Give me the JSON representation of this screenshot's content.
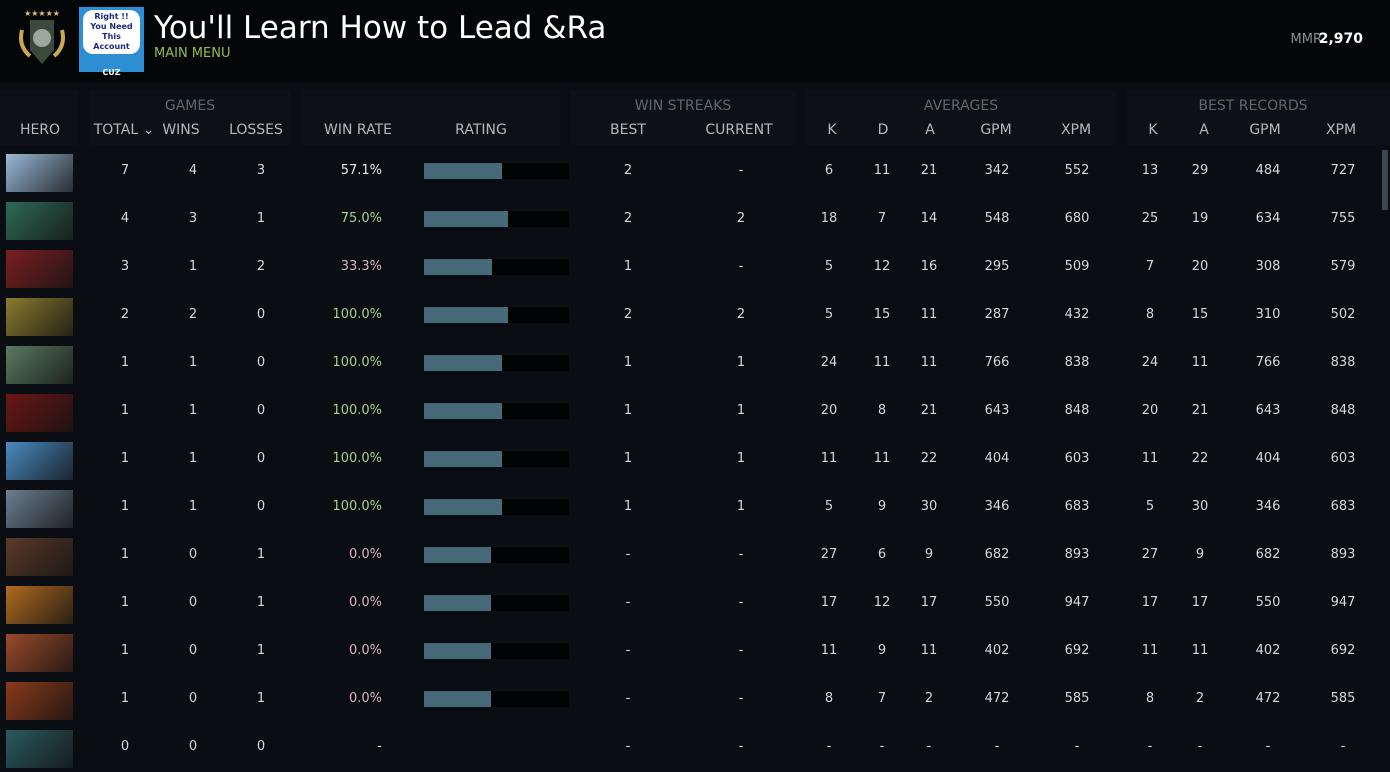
{
  "header": {
    "title": "You'll Learn How to Lead &Ra",
    "menu": "MAIN MENU",
    "mmr_label": "MMR",
    "mmr_value": "2,970",
    "avatar_text": [
      "Right !!",
      "You Need This",
      "Account",
      "CUZ"
    ]
  },
  "columns": {
    "hero": "HERO",
    "games": "GAMES",
    "total": "TOTAL ⌄",
    "wins": "WINS",
    "losses": "LOSSES",
    "win_rate": "WIN RATE",
    "rating": "RATING",
    "win_streaks": "WIN STREAKS",
    "best": "BEST",
    "current": "CURRENT",
    "averages": "AVERAGES",
    "k": "K",
    "d": "D",
    "a": "A",
    "gpm": "GPM",
    "xpm": "XPM",
    "best_records": "BEST RECORDS",
    "bk": "K",
    "ba": "A",
    "bgpm": "GPM",
    "bxpm": "XPM"
  },
  "colors": {
    "win_good": "#a9d08e",
    "win_bad": "#d9b7bd",
    "win_neutral": "#e6e9ec",
    "bar_fill": "#47697a"
  },
  "rows": [
    {
      "hero": "#9ab8d8",
      "total": "7",
      "wins": "4",
      "losses": "3",
      "win_rate": "57.1%",
      "tone": "win_neutral",
      "rating": 0.54,
      "best": "2",
      "current": "-",
      "k": "6",
      "d": "11",
      "a": "21",
      "gpm": "342",
      "xpm": "552",
      "bk": "13",
      "ba": "29",
      "bgpm": "484",
      "bxpm": "727"
    },
    {
      "hero": "#2e6a55",
      "total": "4",
      "wins": "3",
      "losses": "1",
      "win_rate": "75.0%",
      "tone": "win_good",
      "rating": 0.58,
      "best": "2",
      "current": "2",
      "k": "18",
      "d": "7",
      "a": "14",
      "gpm": "548",
      "xpm": "680",
      "bk": "25",
      "ba": "19",
      "bgpm": "634",
      "bxpm": "755"
    },
    {
      "hero": "#7a1f22",
      "total": "3",
      "wins": "1",
      "losses": "2",
      "win_rate": "33.3%",
      "tone": "win_bad",
      "rating": 0.47,
      "best": "1",
      "current": "-",
      "k": "5",
      "d": "12",
      "a": "16",
      "gpm": "295",
      "xpm": "509",
      "bk": "7",
      "ba": "20",
      "bgpm": "308",
      "bxpm": "579"
    },
    {
      "hero": "#8a7a30",
      "total": "2",
      "wins": "2",
      "losses": "0",
      "win_rate": "100.0%",
      "tone": "win_good",
      "rating": 0.58,
      "best": "2",
      "current": "2",
      "k": "5",
      "d": "15",
      "a": "11",
      "gpm": "287",
      "xpm": "432",
      "bk": "8",
      "ba": "15",
      "bgpm": "310",
      "bxpm": "502"
    },
    {
      "hero": "#5a7a60",
      "total": "1",
      "wins": "1",
      "losses": "0",
      "win_rate": "100.0%",
      "tone": "win_good",
      "rating": 0.54,
      "best": "1",
      "current": "1",
      "k": "24",
      "d": "11",
      "a": "11",
      "gpm": "766",
      "xpm": "838",
      "bk": "24",
      "ba": "11",
      "bgpm": "766",
      "bxpm": "838"
    },
    {
      "hero": "#6a1616",
      "total": "1",
      "wins": "1",
      "losses": "0",
      "win_rate": "100.0%",
      "tone": "win_good",
      "rating": 0.54,
      "best": "1",
      "current": "1",
      "k": "20",
      "d": "8",
      "a": "21",
      "gpm": "643",
      "xpm": "848",
      "bk": "20",
      "ba": "21",
      "bgpm": "643",
      "bxpm": "848"
    },
    {
      "hero": "#4a8ac0",
      "total": "1",
      "wins": "1",
      "losses": "0",
      "win_rate": "100.0%",
      "tone": "win_good",
      "rating": 0.54,
      "best": "1",
      "current": "1",
      "k": "11",
      "d": "11",
      "a": "22",
      "gpm": "404",
      "xpm": "603",
      "bk": "11",
      "ba": "22",
      "bgpm": "404",
      "bxpm": "603"
    },
    {
      "hero": "#6a7f90",
      "total": "1",
      "wins": "1",
      "losses": "0",
      "win_rate": "100.0%",
      "tone": "win_good",
      "rating": 0.54,
      "best": "1",
      "current": "1",
      "k": "5",
      "d": "9",
      "a": "30",
      "gpm": "346",
      "xpm": "683",
      "bk": "5",
      "ba": "30",
      "bgpm": "346",
      "bxpm": "683"
    },
    {
      "hero": "#5a3a2a",
      "total": "1",
      "wins": "0",
      "losses": "1",
      "win_rate": "0.0%",
      "tone": "win_bad",
      "rating": 0.46,
      "best": "-",
      "current": "-",
      "k": "27",
      "d": "6",
      "a": "9",
      "gpm": "682",
      "xpm": "893",
      "bk": "27",
      "ba": "9",
      "bgpm": "682",
      "bxpm": "893"
    },
    {
      "hero": "#b06a20",
      "total": "1",
      "wins": "0",
      "losses": "1",
      "win_rate": "0.0%",
      "tone": "win_bad",
      "rating": 0.46,
      "best": "-",
      "current": "-",
      "k": "17",
      "d": "12",
      "a": "17",
      "gpm": "550",
      "xpm": "947",
      "bk": "17",
      "ba": "17",
      "bgpm": "550",
      "bxpm": "947"
    },
    {
      "hero": "#9a4a2a",
      "total": "1",
      "wins": "0",
      "losses": "1",
      "win_rate": "0.0%",
      "tone": "win_bad",
      "rating": 0.46,
      "best": "-",
      "current": "-",
      "k": "11",
      "d": "9",
      "a": "11",
      "gpm": "402",
      "xpm": "692",
      "bk": "11",
      "ba": "11",
      "bgpm": "402",
      "bxpm": "692"
    },
    {
      "hero": "#8a3a1a",
      "total": "1",
      "wins": "0",
      "losses": "1",
      "win_rate": "0.0%",
      "tone": "win_bad",
      "rating": 0.46,
      "best": "-",
      "current": "-",
      "k": "8",
      "d": "7",
      "a": "2",
      "gpm": "472",
      "xpm": "585",
      "bk": "8",
      "ba": "2",
      "bgpm": "472",
      "bxpm": "585"
    },
    {
      "hero": "#2a5a60",
      "total": "0",
      "wins": "0",
      "losses": "0",
      "win_rate": "-",
      "tone": "win_neutral",
      "rating": null,
      "best": "-",
      "current": "-",
      "k": "-",
      "d": "-",
      "a": "-",
      "gpm": "-",
      "xpm": "-",
      "bk": "-",
      "ba": "-",
      "bgpm": "-",
      "bxpm": "-"
    }
  ]
}
